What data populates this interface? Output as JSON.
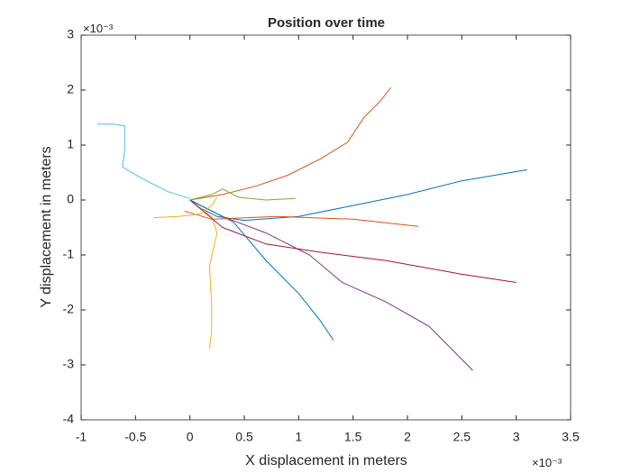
{
  "chart_data": {
    "type": "line",
    "title": "Position over time",
    "x_label": "X displacement in meters",
    "y_label": "Y displacement in meters",
    "x_exponent_label": "×10⁻³",
    "y_exponent_label": "×10⁻³",
    "xlim": [
      -1,
      3.5
    ],
    "ylim": [
      -4,
      3
    ],
    "xticks": [
      -1,
      -0.5,
      0,
      0.5,
      1,
      1.5,
      2,
      2.5,
      3,
      3.5
    ],
    "yticks": [
      -4,
      -3,
      -2,
      -1,
      0,
      1,
      2,
      3
    ],
    "grid": false,
    "series": [
      {
        "color": "#0072BD",
        "x": [
          0,
          0.1,
          0.25,
          0.5,
          1,
          1.5,
          2,
          2.5,
          3.1
        ],
        "values": [
          0,
          -0.15,
          -0.3,
          -0.37,
          -0.3,
          -0.1,
          0.1,
          0.35,
          0.55
        ]
      },
      {
        "color": "#D95319",
        "x": [
          0,
          0.3,
          0.6,
          0.9,
          1.2,
          1.45,
          1.6,
          1.75,
          1.85
        ],
        "values": [
          0,
          0.1,
          0.25,
          0.45,
          0.75,
          1.05,
          1.5,
          1.8,
          2.05
        ]
      },
      {
        "color": "#EDB120",
        "x": [
          0,
          0.2,
          0.25,
          0.18,
          0.2,
          0.2,
          0.18
        ],
        "values": [
          0,
          -0.3,
          -0.6,
          -1.2,
          -1.9,
          -2.4,
          -2.7
        ]
      },
      {
        "color": "#7E2F8E",
        "x": [
          0,
          0.3,
          0.7,
          1.1,
          1.4,
          1.8,
          2.2,
          2.6
        ],
        "values": [
          0,
          -0.3,
          -0.6,
          -1.0,
          -1.5,
          -1.85,
          -2.3,
          -3.1
        ]
      },
      {
        "color": "#77AC30",
        "x": [
          0,
          0.2,
          0.3,
          0.45,
          0.7,
          0.97
        ],
        "values": [
          0,
          0.1,
          0.2,
          0.05,
          0.0,
          0.03
        ]
      },
      {
        "color": "#4DBEEE",
        "x": [
          -0.85,
          -0.7,
          -0.6,
          -0.6,
          -0.62,
          -0.45,
          -0.2,
          0
        ],
        "values": [
          1.38,
          1.38,
          1.35,
          0.9,
          0.6,
          0.4,
          0.15,
          0.03
        ]
      },
      {
        "color": "#A2142F",
        "x": [
          0,
          0.3,
          0.7,
          1.2,
          1.8,
          2.5,
          3
        ],
        "values": [
          0,
          -0.5,
          -0.8,
          -0.95,
          -1.1,
          -1.35,
          -1.5
        ]
      },
      {
        "color": "#0072BD",
        "x": [
          0,
          0.4,
          0.7,
          1.0,
          1.2,
          1.32
        ],
        "values": [
          0,
          -0.4,
          -1.1,
          -1.7,
          -2.2,
          -2.55
        ]
      },
      {
        "color": "#D95319",
        "x": [
          -0.05,
          0.2,
          0.8,
          1.5,
          2.1
        ],
        "values": [
          -0.2,
          -0.35,
          -0.3,
          -0.35,
          -0.48
        ]
      },
      {
        "color": "#EDB120",
        "x": [
          -0.33,
          -0.1,
          0.1,
          0.2,
          0.25
        ],
        "values": [
          -0.32,
          -0.3,
          -0.25,
          -0.1,
          0.05
        ]
      }
    ]
  }
}
